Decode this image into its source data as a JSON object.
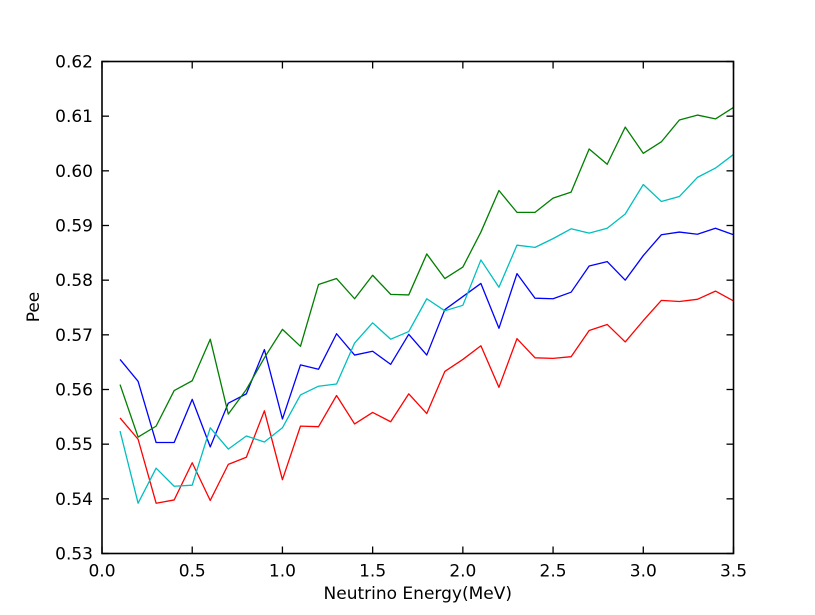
{
  "figure": {
    "background": "#ffffff",
    "spine_color": "#000000",
    "tick_label_color": "#000000"
  },
  "chart_data": {
    "type": "line",
    "title": "",
    "xlabel": "Neutrino Energy(MeV)",
    "ylabel": "Pee",
    "xlim": [
      0.0,
      3.5
    ],
    "ylim": [
      0.53,
      0.62
    ],
    "grid": false,
    "legend": "none",
    "xticks": {
      "values": [
        0.0,
        0.5,
        1.0,
        1.5,
        2.0,
        2.5,
        3.0,
        3.5
      ],
      "labels": [
        "0.0",
        "0.5",
        "1.0",
        "1.5",
        "2.0",
        "2.5",
        "3.0",
        "3.5"
      ]
    },
    "yticks": {
      "values": [
        0.53,
        0.54,
        0.55,
        0.56,
        0.57,
        0.58,
        0.59,
        0.6,
        0.61,
        0.62
      ],
      "labels": [
        "0.53",
        "0.54",
        "0.55",
        "0.56",
        "0.57",
        "0.58",
        "0.59",
        "0.60",
        "0.61",
        "0.62"
      ]
    },
    "x": [
      0.1,
      0.2,
      0.3,
      0.4,
      0.5,
      0.6,
      0.7,
      0.8,
      0.9,
      1.0,
      1.1,
      1.2,
      1.3,
      1.4,
      1.5,
      1.6,
      1.7,
      1.8,
      1.9,
      2.0,
      2.1,
      2.2,
      2.3,
      2.4,
      2.5,
      2.6,
      2.7,
      2.8,
      2.9,
      3.0,
      3.1,
      3.2,
      3.3,
      3.4,
      3.5
    ],
    "series": [
      {
        "name": "blue-line",
        "color": "#0000ff",
        "values": [
          0.5655,
          0.5615,
          0.5503,
          0.5503,
          0.5582,
          0.5495,
          0.5575,
          0.5592,
          0.5673,
          0.5546,
          0.5645,
          0.5637,
          0.5702,
          0.5663,
          0.567,
          0.5646,
          0.5701,
          0.5663,
          0.5746,
          0.577,
          0.5794,
          0.5712,
          0.5812,
          0.5767,
          0.5766,
          0.5778,
          0.5826,
          0.5834,
          0.58,
          0.5845,
          0.5883,
          0.5888,
          0.5884,
          0.5895,
          0.5883
        ]
      },
      {
        "name": "green-line",
        "color": "#007f00",
        "values": [
          0.5609,
          0.5513,
          0.5533,
          0.5598,
          0.5616,
          0.5692,
          0.5555,
          0.56,
          0.5658,
          0.571,
          0.5679,
          0.5792,
          0.5803,
          0.5766,
          0.5809,
          0.5774,
          0.5773,
          0.5848,
          0.5803,
          0.5824,
          0.5888,
          0.5964,
          0.5924,
          0.5924,
          0.595,
          0.5961,
          0.604,
          0.6012,
          0.608,
          0.6032,
          0.6053,
          0.6093,
          0.6102,
          0.6095,
          0.6116
        ]
      },
      {
        "name": "red-line",
        "color": "#ff0000",
        "values": [
          0.5548,
          0.5509,
          0.5392,
          0.5398,
          0.5466,
          0.5397,
          0.5463,
          0.5476,
          0.5561,
          0.5435,
          0.5533,
          0.5532,
          0.5589,
          0.5537,
          0.5558,
          0.5541,
          0.5592,
          0.5556,
          0.5633,
          0.5655,
          0.568,
          0.5604,
          0.5693,
          0.5658,
          0.5657,
          0.566,
          0.5708,
          0.5719,
          0.5687,
          0.5726,
          0.5763,
          0.5761,
          0.5765,
          0.578,
          0.5762
        ]
      },
      {
        "name": "cyan-line",
        "color": "#00bfbf",
        "values": [
          0.5524,
          0.5392,
          0.5456,
          0.5423,
          0.5425,
          0.553,
          0.5491,
          0.5515,
          0.5504,
          0.553,
          0.559,
          0.5606,
          0.561,
          0.5685,
          0.5722,
          0.5692,
          0.5706,
          0.5766,
          0.5744,
          0.5754,
          0.5837,
          0.5787,
          0.5864,
          0.586,
          0.5876,
          0.5894,
          0.5886,
          0.5895,
          0.5921,
          0.5975,
          0.5944,
          0.5953,
          0.5988,
          0.6005,
          0.603
        ]
      }
    ]
  }
}
